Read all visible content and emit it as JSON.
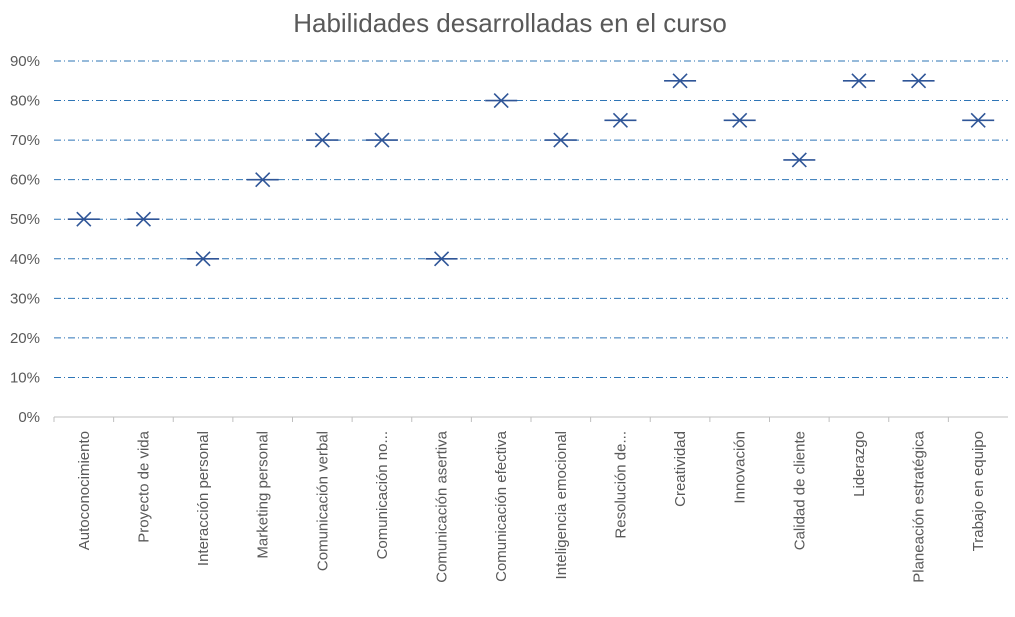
{
  "chart_data": {
    "type": "scatter",
    "title": "Habilidades desarrolladas en el curso",
    "xlabel": "",
    "ylabel": "",
    "ylim": [
      0,
      0.9
    ],
    "yticks": [
      "0%",
      "10%",
      "20%",
      "30%",
      "40%",
      "50%",
      "60%",
      "70%",
      "80%",
      "90%"
    ],
    "grid": true,
    "legend": "none",
    "marker_color": "#2f5597",
    "grid_color": "#2e75b6",
    "categories": [
      "Autoconocimiento",
      "Proyecto de vida",
      "Interacción personal",
      "Marketing personal",
      "Comunicación verbal",
      "Comunicación no...",
      "Comunicación asertiva",
      "Comunicación efectiva",
      "Inteligencia emocional",
      "Resolución de...",
      "Creatividad",
      "Innovación",
      "Calidad de cliente",
      "Liderazgo",
      "Planeación estratégica",
      "Trabajo en equipo"
    ],
    "values": [
      0.5,
      0.5,
      0.4,
      0.6,
      0.7,
      0.7,
      0.4,
      0.8,
      0.7,
      0.75,
      0.85,
      0.75,
      0.65,
      0.85,
      0.85,
      0.75
    ]
  }
}
